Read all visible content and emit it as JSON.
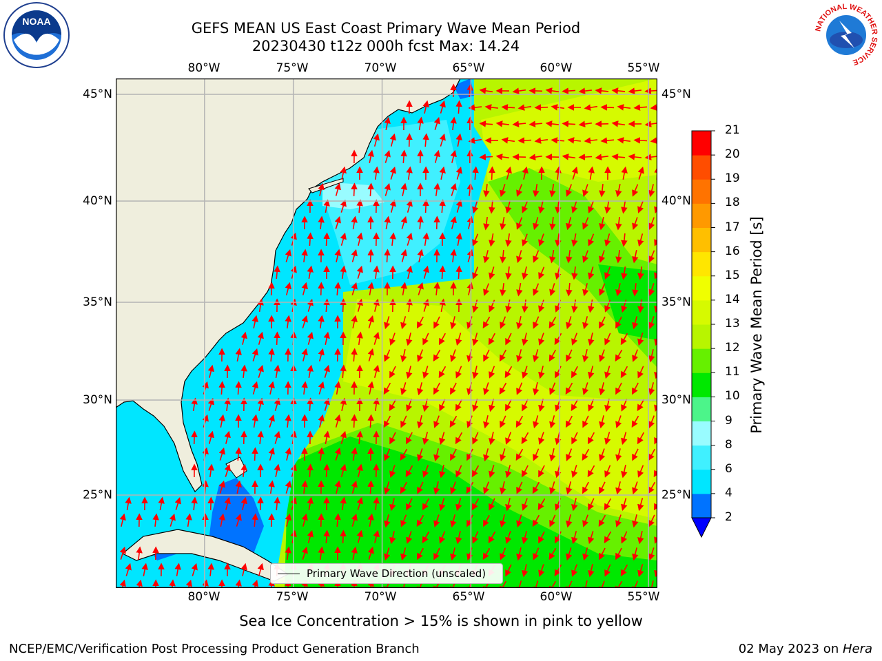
{
  "title": {
    "line1": "GEFS MEAN US East Coast Primary Wave Mean Period",
    "line2": "20230430 t12z 000h fcst   Max: 14.24"
  },
  "map": {
    "lon_labels": [
      "80°W",
      "75°W",
      "70°W",
      "65°W",
      "60°W",
      "55°W"
    ],
    "lat_labels": [
      "45°N",
      "40°N",
      "35°N",
      "30°N",
      "25°N"
    ],
    "lon_range": [
      -85,
      -54.5
    ],
    "lat_range": [
      20.5,
      46
    ],
    "colors": {
      "land": "#efeedd",
      "coastline": "#000000",
      "gridline": "#b4b4b4",
      "arrows": "#ff0000"
    },
    "legend_text": "Primary Wave Direction (unscaled)",
    "ice_note": "Sea Ice Concentration > 15% is shown in pink to yellow"
  },
  "colorbar": {
    "label": "Primary Wave Mean Period [s]",
    "levels": [
      "2",
      "4",
      "6",
      "8",
      "9",
      "10",
      "11",
      "12",
      "13",
      "14",
      "15",
      "16",
      "17",
      "18",
      "19",
      "20",
      "21"
    ],
    "colors": [
      "#0073ff",
      "#00e6ff",
      "#40f0ff",
      "#99fcff",
      "#4cf58a",
      "#00e800",
      "#66f000",
      "#b8f500",
      "#d6fa00",
      "#f0ff00",
      "#ffe600",
      "#ffbf00",
      "#ff9900",
      "#ff7300",
      "#ff4d00",
      "#ff0000"
    ],
    "extend_color": "#0000ff"
  },
  "footer": {
    "left": "NCEP/EMC/Verification Post Processing Product Generation Branch",
    "date": "02 May 2023 on ",
    "host": "Hera"
  },
  "logos": {
    "noaa": "NOAA",
    "nws_ring": "NATIONAL WEATHER SERVICE"
  }
}
